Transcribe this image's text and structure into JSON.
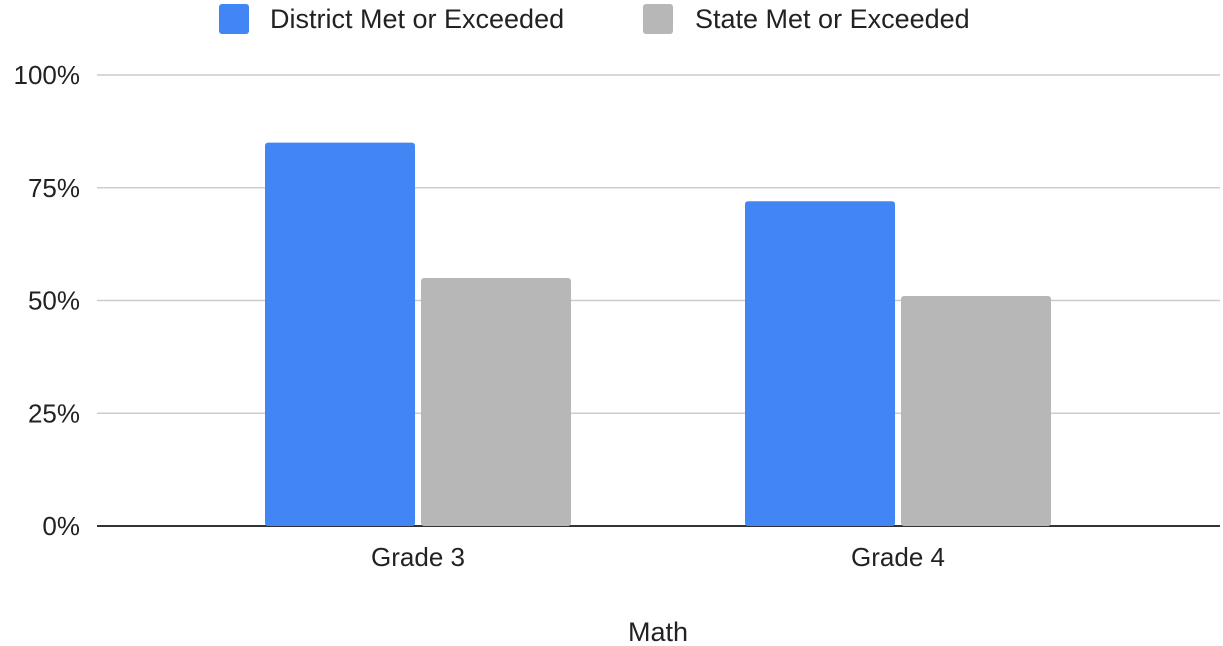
{
  "chart_data": {
    "type": "bar",
    "categories": [
      "Grade 3",
      "Grade 4"
    ],
    "series": [
      {
        "name": "District Met or Exceeded",
        "values": [
          85,
          72
        ],
        "color": "#4285f4"
      },
      {
        "name": "State Met or Exceeded",
        "values": [
          55,
          51
        ],
        "color": "#b7b7b7"
      }
    ],
    "title": "",
    "xlabel": "Math",
    "ylabel": "",
    "ylim": [
      0,
      100
    ],
    "yticks": [
      0,
      25,
      50,
      75,
      100
    ],
    "ytick_labels": [
      "0%",
      "25%",
      "50%",
      "75%",
      "100%"
    ],
    "grid": true,
    "legend_position": "top"
  }
}
